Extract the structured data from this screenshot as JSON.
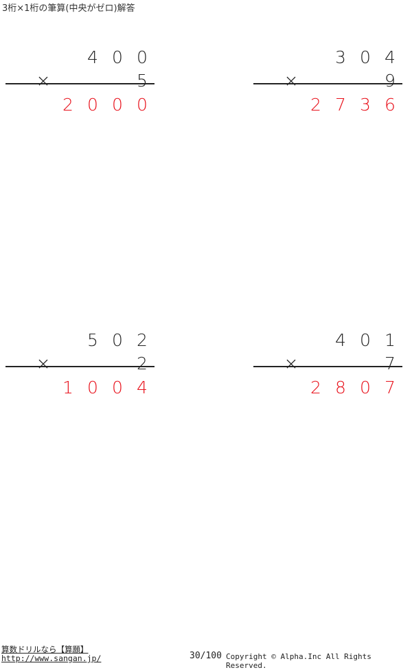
{
  "title": "3桁×1桁の筆算(中央がゼロ)解答",
  "problems": [
    {
      "top": [
        "4",
        "0",
        "0"
      ],
      "multiplier": "5",
      "answer": [
        "2",
        "0",
        "0",
        "0"
      ]
    },
    {
      "top": [
        "3",
        "0",
        "4"
      ],
      "multiplier": "9",
      "answer": [
        "2",
        "7",
        "3",
        "6"
      ]
    },
    {
      "top": [
        "5",
        "0",
        "2"
      ],
      "multiplier": "2",
      "answer": [
        "1",
        "0",
        "0",
        "4"
      ]
    },
    {
      "top": [
        "4",
        "0",
        "1"
      ],
      "multiplier": "7",
      "answer": [
        "2",
        "8",
        "0",
        "7"
      ]
    }
  ],
  "times_sign": "×",
  "footer": {
    "site_name": "算数ドリルなら【算願】",
    "url": "http://www.sangan.jp/",
    "page": "30/100",
    "copyright": "Copyright © Alpha.Inc All Rights Reserved."
  },
  "colors": {
    "answer": "#e8101a",
    "text": "#222222"
  }
}
